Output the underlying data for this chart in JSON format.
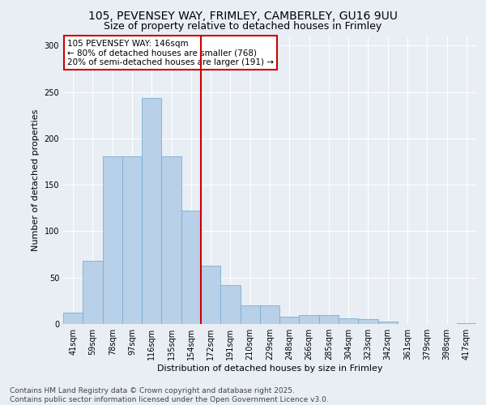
{
  "title_line1": "105, PEVENSEY WAY, FRIMLEY, CAMBERLEY, GU16 9UU",
  "title_line2": "Size of property relative to detached houses in Frimley",
  "xlabel": "Distribution of detached houses by size in Frimley",
  "ylabel": "Number of detached properties",
  "categories": [
    "41sqm",
    "59sqm",
    "78sqm",
    "97sqm",
    "116sqm",
    "135sqm",
    "154sqm",
    "172sqm",
    "191sqm",
    "210sqm",
    "229sqm",
    "248sqm",
    "266sqm",
    "285sqm",
    "304sqm",
    "323sqm",
    "342sqm",
    "361sqm",
    "379sqm",
    "398sqm",
    "417sqm"
  ],
  "values": [
    12,
    68,
    181,
    181,
    244,
    181,
    122,
    63,
    42,
    20,
    20,
    8,
    10,
    10,
    6,
    5,
    3,
    0,
    0,
    0,
    1
  ],
  "bar_color": "#b8d0e8",
  "bar_edgecolor": "#7aadd4",
  "vline_x": 6.5,
  "vline_color": "#cc0000",
  "annotation_text": "105 PEVENSEY WAY: 146sqm\n← 80% of detached houses are smaller (768)\n20% of semi-detached houses are larger (191) →",
  "annotation_box_color": "#ffffff",
  "annotation_box_edgecolor": "#cc0000",
  "ylim": [
    0,
    310
  ],
  "yticks": [
    0,
    50,
    100,
    150,
    200,
    250,
    300
  ],
  "bg_color": "#e8eef4",
  "footer_text": "Contains HM Land Registry data © Crown copyright and database right 2025.\nContains public sector information licensed under the Open Government Licence v3.0.",
  "title_fontsize": 10,
  "subtitle_fontsize": 9,
  "tick_fontsize": 7,
  "label_fontsize": 8,
  "annotation_fontsize": 7.5,
  "footer_fontsize": 6.5
}
